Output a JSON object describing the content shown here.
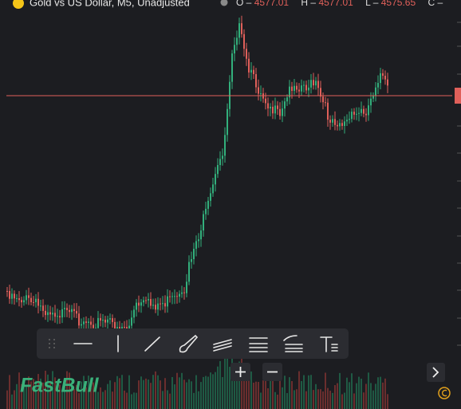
{
  "header": {
    "title": "Gold vs US Dollar, M5, Unadjusted",
    "ohlc": [
      {
        "label": "O",
        "value": "4577.01"
      },
      {
        "label": "H",
        "value": "4577.01"
      },
      {
        "label": "L",
        "value": "4575.65"
      },
      {
        "label": "C",
        "value": ""
      }
    ]
  },
  "brand": "FastBull"
}
